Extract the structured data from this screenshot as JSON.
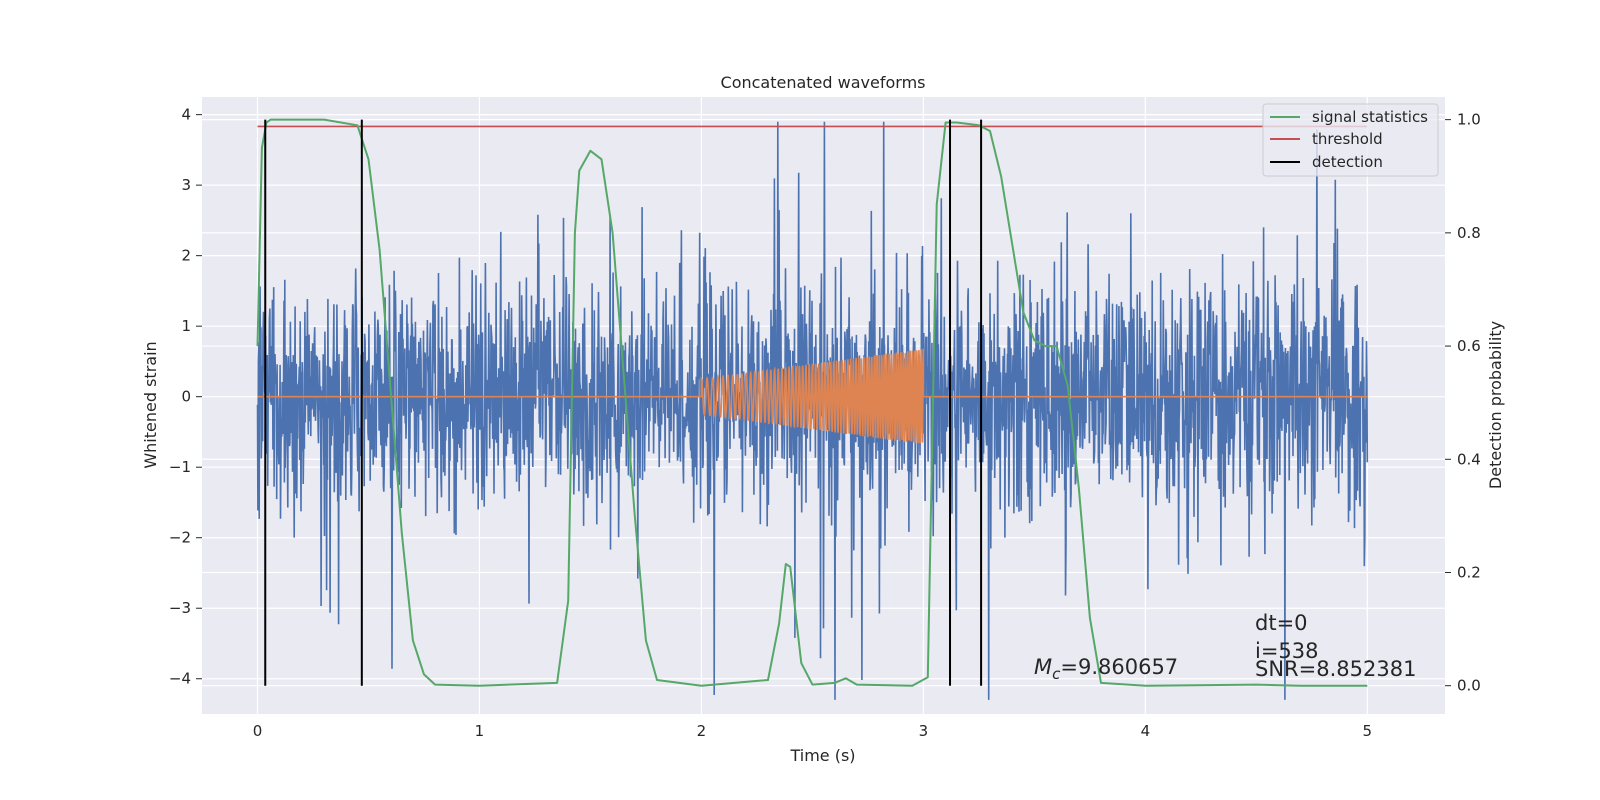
{
  "chart_data": {
    "type": "line",
    "title": "Concatenated waveforms",
    "xlabel": "Time (s)",
    "ylabel": "Whitened strain",
    "y2label": "Detection probability",
    "xlim": [
      -0.25,
      5.35
    ],
    "ylim": [
      -4.5,
      4.25
    ],
    "y2lim": [
      -0.05,
      1.04
    ],
    "xticks": [
      0,
      1,
      2,
      3,
      4,
      5
    ],
    "yticks": [
      -4,
      -3,
      -2,
      -1,
      0,
      1,
      2,
      3,
      4
    ],
    "y2ticks": [
      0.0,
      0.2,
      0.4,
      0.6,
      0.8,
      1.0
    ],
    "grid": true,
    "legend_position": "top-right",
    "series": [
      {
        "name": "",
        "kind": "strain-noise",
        "color": "#4c72b0",
        "t_range": [
          0,
          5
        ],
        "envelope": 2.2,
        "min": -4.3,
        "max": 3.9
      },
      {
        "name": "",
        "kind": "injected-chirp",
        "color": "#dd8452",
        "t_range": [
          2.0,
          3.0
        ],
        "amplitude_start": 0.25,
        "amplitude_end": 0.68
      },
      {
        "name": "signal statistics",
        "color": "#55a868",
        "axis": "right",
        "x": [
          0.0,
          0.02,
          0.04,
          0.06,
          0.1,
          0.3,
          0.45,
          0.5,
          0.55,
          0.6,
          0.65,
          0.7,
          0.75,
          0.8,
          1.0,
          1.35,
          1.4,
          1.43,
          1.45,
          1.5,
          1.55,
          1.6,
          1.65,
          1.7,
          1.75,
          1.8,
          2.0,
          2.3,
          2.35,
          2.38,
          2.4,
          2.45,
          2.5,
          2.6,
          2.65,
          2.7,
          2.95,
          3.02,
          3.06,
          3.1,
          3.15,
          3.25,
          3.3,
          3.35,
          3.4,
          3.45,
          3.5,
          3.55,
          3.6,
          3.65,
          3.7,
          3.75,
          3.8,
          4.0,
          4.5,
          4.7,
          5.0
        ],
        "y": [
          0.6,
          0.95,
          0.995,
          1.0,
          1.0,
          1.0,
          0.99,
          0.93,
          0.77,
          0.52,
          0.27,
          0.08,
          0.02,
          0.002,
          0.0,
          0.005,
          0.15,
          0.8,
          0.91,
          0.945,
          0.93,
          0.8,
          0.55,
          0.3,
          0.08,
          0.01,
          0.0,
          0.01,
          0.11,
          0.215,
          0.21,
          0.04,
          0.002,
          0.005,
          0.013,
          0.002,
          0.0,
          0.015,
          0.85,
          0.995,
          0.995,
          0.99,
          0.98,
          0.9,
          0.78,
          0.66,
          0.61,
          0.6,
          0.6,
          0.53,
          0.35,
          0.12,
          0.005,
          0.0,
          0.002,
          0.0,
          0.0
        ]
      },
      {
        "name": "threshold",
        "color": "#c44e52",
        "axis": "right",
        "x": [
          0,
          5
        ],
        "y": [
          0.988,
          0.988
        ]
      },
      {
        "name": "detection",
        "color": "#000000",
        "axis": "right",
        "x": [
          0.035,
          0.47,
          3.12,
          3.26
        ],
        "y_range": [
          0.0,
          1.0
        ]
      }
    ],
    "annotations": {
      "mc_symbol": "M",
      "mc_subscript": "c",
      "mc_value": "=9.860657",
      "dt": "dt=0",
      "index": "i=538",
      "snr": "SNR=8.852381"
    }
  }
}
